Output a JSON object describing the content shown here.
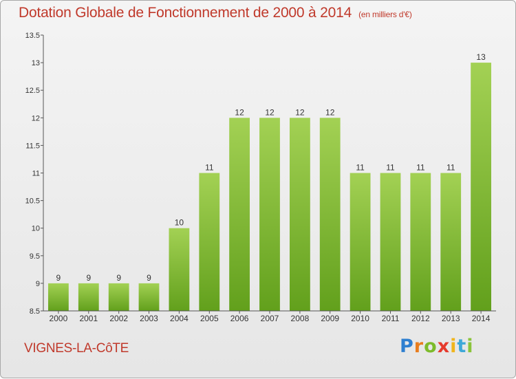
{
  "header": {
    "title": "Dotation Globale de Fonctionnement de 2000 à 2014",
    "unit": "(en milliers d'€)"
  },
  "footer": {
    "city": "VIGNES-LA-CôTE",
    "logo_letters": [
      "P",
      "r",
      "o",
      "x",
      "i",
      "t",
      "i"
    ],
    "logo_colors": [
      "#2e7fd0",
      "#e87d1e",
      "#7dbb2b",
      "#e63a2c",
      "#f0b51c",
      "#3ea8d8",
      "#8ac43a"
    ]
  },
  "colors": {
    "title": "#c0392b",
    "bar_light": "#a3d154",
    "bar_dark": "#62a01c",
    "axis": "#555555"
  },
  "chart_data": {
    "type": "bar",
    "title": "Dotation Globale de Fonctionnement de 2000 à 2014",
    "xlabel": "",
    "ylabel": "",
    "categories": [
      "2000",
      "2001",
      "2002",
      "2003",
      "2004",
      "2005",
      "2006",
      "2007",
      "2008",
      "2009",
      "2010",
      "2011",
      "2012",
      "2013",
      "2014"
    ],
    "values": [
      9,
      9,
      9,
      9,
      10,
      11,
      12,
      12,
      12,
      12,
      11,
      11,
      11,
      11,
      13
    ],
    "data_labels": [
      "9",
      "9",
      "9",
      "9",
      "10",
      "11",
      "12",
      "12",
      "12",
      "12",
      "11",
      "11",
      "11",
      "11",
      "13"
    ],
    "ylim": [
      8.5,
      13.5
    ],
    "yticks": [
      8.5,
      9,
      9.5,
      10,
      10.5,
      11,
      11.5,
      12,
      12.5,
      13,
      13.5
    ],
    "ytick_labels": [
      "8.5",
      "9",
      "9.5",
      "10",
      "10.5",
      "11",
      "11.5",
      "12",
      "12.5",
      "13",
      "13.5"
    ],
    "grid": false,
    "legend": "none"
  }
}
